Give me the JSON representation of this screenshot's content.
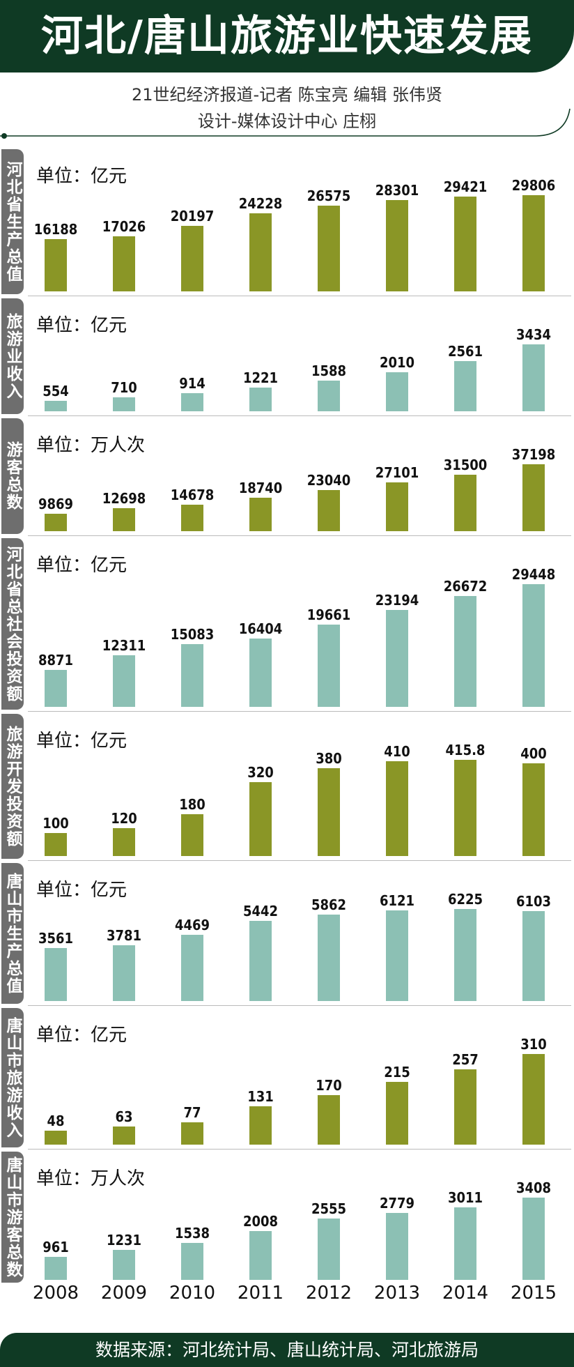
{
  "header": {
    "title": "河北/唐山旅游业快速发展",
    "credit_line1": "21世纪经济报道-记者  陈宝亮    编辑  张伟贤",
    "credit_line2": "设计-媒体设计中心  庄栩"
  },
  "colors": {
    "header_bg": "#0f3a24",
    "olive": "#8a9626",
    "teal": "#8cc0b4",
    "tab_gray": "#6e6e6e"
  },
  "chart_data": [
    {
      "type": "bar",
      "label": "河北省生产总值",
      "unit": "单位：亿元",
      "color": "olive",
      "categories": [
        "2008",
        "2009",
        "2010",
        "2011",
        "2012",
        "2013",
        "2014",
        "2015"
      ],
      "values": [
        16188,
        17026,
        20197,
        24228,
        26575,
        28301,
        29421,
        29806
      ],
      "value_labels": [
        "16188",
        "17026",
        "20197",
        "24228",
        "26575",
        "28301",
        "29421",
        "29806"
      ]
    },
    {
      "type": "bar",
      "label": "旅游业收入",
      "unit": "单位：亿元",
      "color": "teal",
      "categories": [
        "2008",
        "2009",
        "2010",
        "2011",
        "2012",
        "2013",
        "2014",
        "2015"
      ],
      "values": [
        554,
        710,
        914,
        1221,
        1588,
        2010,
        2561,
        3434
      ],
      "value_labels": [
        "554",
        "710",
        "914",
        "1221",
        "1588",
        "2010",
        "2561",
        "3434"
      ]
    },
    {
      "type": "bar",
      "label": "游客总数",
      "unit": "单位：万人次",
      "color": "olive",
      "categories": [
        "2008",
        "2009",
        "2010",
        "2011",
        "2012",
        "2013",
        "2014",
        "2015"
      ],
      "values": [
        9869,
        12698,
        14678,
        18740,
        23040,
        27101,
        31500,
        37198
      ],
      "value_labels": [
        "9869",
        "12698",
        "14678",
        "18740",
        "23040",
        "27101",
        "31500",
        "37198"
      ]
    },
    {
      "type": "bar",
      "label": "河北省总社会投资额",
      "unit": "单位：亿元",
      "color": "teal",
      "categories": [
        "2008",
        "2009",
        "2010",
        "2011",
        "2012",
        "2013",
        "2014",
        "2015"
      ],
      "values": [
        8871,
        12311,
        15083,
        16404,
        19661,
        23194,
        26672,
        29448
      ],
      "value_labels": [
        "8871",
        "12311",
        "15083",
        "16404",
        "19661",
        "23194",
        "26672",
        "29448"
      ]
    },
    {
      "type": "bar",
      "label": "旅游开发投资额",
      "unit": "单位：亿元",
      "color": "olive",
      "categories": [
        "2008",
        "2009",
        "2010",
        "2011",
        "2012",
        "2013",
        "2014",
        "2015"
      ],
      "values": [
        100,
        120,
        180,
        320,
        380,
        410,
        415.8,
        400
      ],
      "value_labels": [
        "100",
        "120",
        "180",
        "320",
        "380",
        "410",
        "415.8",
        "400"
      ]
    },
    {
      "type": "bar",
      "label": "唐山市生产总值",
      "unit": "单位：亿元",
      "color": "teal",
      "categories": [
        "2008",
        "2009",
        "2010",
        "2011",
        "2012",
        "2013",
        "2014",
        "2015"
      ],
      "values": [
        3561,
        3781,
        4469,
        5442,
        5862,
        6121,
        6225,
        6103
      ],
      "value_labels": [
        "3561",
        "3781",
        "4469",
        "5442",
        "5862",
        "6121",
        "6225",
        "6103"
      ]
    },
    {
      "type": "bar",
      "label": "唐山市旅游收入",
      "unit": "单位：亿元",
      "color": "olive",
      "categories": [
        "2008",
        "2009",
        "2010",
        "2011",
        "2012",
        "2013",
        "2014",
        "2015"
      ],
      "values": [
        48,
        63,
        77,
        131,
        170,
        215,
        257,
        310
      ],
      "value_labels": [
        "48",
        "63",
        "77",
        "131",
        "170",
        "215",
        "257",
        "310"
      ]
    },
    {
      "type": "bar",
      "label": "唐山市游客总数",
      "unit": "单位：万人次",
      "color": "teal",
      "categories": [
        "2008",
        "2009",
        "2010",
        "2011",
        "2012",
        "2013",
        "2014",
        "2015"
      ],
      "values": [
        961,
        1231,
        1538,
        2008,
        2555,
        2779,
        3011,
        3408
      ],
      "value_labels": [
        "961",
        "1231",
        "1538",
        "2008",
        "2555",
        "2779",
        "3011",
        "3408"
      ]
    }
  ],
  "x_axis": {
    "years": [
      "2008",
      "2009",
      "2010",
      "2011",
      "2012",
      "2013",
      "2014",
      "2015"
    ]
  },
  "footer": {
    "source": "数据来源：河北统计局、唐山统计局、河北旅游局"
  }
}
